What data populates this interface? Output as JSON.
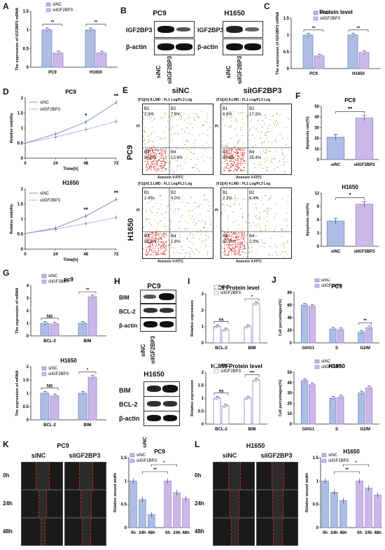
{
  "panels": {
    "A": {
      "label": "A"
    },
    "B": {
      "label": "B",
      "pc9": "PC9",
      "h1650": "H1650",
      "igf": "IGF2BP3",
      "actin": "β-actin",
      "sinc": "siNC",
      "si": "siIGF2BP3"
    },
    "C": {
      "label": "C",
      "title": "Protein level"
    },
    "D": {
      "label": "D",
      "title1": "PC9",
      "title2": "H1650"
    },
    "E": {
      "label": "E",
      "col1": "siNC",
      "col2": "siIGF2BP3",
      "row1": "PC9",
      "row2": "H1650",
      "headers": [
        "(F1)[A] 8.LMD : FL1 Log/FL3 Log",
        "(F1)[A] 8.LMD : FL1 Log/FL3 Log",
        "(F1)[A] 2.LMD : FL1 Log/FL3 Log",
        "(F1)[A] 4.LMD : FL1 Log/FL3 Log"
      ],
      "xaxis": "Annexin V-FITC",
      "yaxis": "PI",
      "quads": [
        {
          "B1": "B1",
          "B1v": "2.3%",
          "B2": "B2",
          "B2v": "7.8%",
          "B3": "B3",
          "B3v": "86.0%",
          "B4": "B4",
          "B4v": "13.9%"
        },
        {
          "B1": "B1",
          "B1v": "6.8%",
          "B2": "B2",
          "B2v": "17.2%",
          "B3": "B3",
          "B3v": "50.6%",
          "B4": "B4",
          "B4v": "25.4%"
        },
        {
          "B1": "B1",
          "B1v": "2.4%",
          "B2": "B2",
          "B2v": "4.0%",
          "B3": "B3",
          "B3v": "91.8%",
          "B4": "B4",
          "B4v": "1.8%"
        },
        {
          "B1": "B1",
          "B1v": "2.3%",
          "B2": "B2",
          "B2v": "8.4%",
          "B3": "B3",
          "B3v": "87.2%",
          "B4": "B4",
          "B4v": "2.0%"
        }
      ]
    },
    "F": {
      "label": "F",
      "title1": "PC9",
      "title2": "H1650"
    },
    "G": {
      "label": "G",
      "title1": "pc9",
      "title2": "H1650"
    },
    "H": {
      "label": "H",
      "title1": "PC9",
      "title2": "H1650",
      "bim": "BIM",
      "bcl": "BCL-2",
      "actin": "β-actin",
      "sinc": "siNC",
      "si": "siIGF2BP3"
    },
    "I": {
      "label": "I",
      "title1": "PC9 Protein level",
      "title2": "H1650 Protein level"
    },
    "J": {
      "label": "J",
      "title1": "PC9",
      "title2": "H1650"
    },
    "K": {
      "label": "K",
      "cell": "PC9",
      "sinc": "siNC",
      "si": "siIGF2BP3",
      "times": [
        "0h",
        "24h",
        "48h"
      ],
      "title": "PC9"
    },
    "L": {
      "label": "L",
      "cell": "H1650",
      "sinc": "siNC",
      "si": "siIGF2BP3",
      "times": [
        "0h",
        "24h",
        "48h"
      ],
      "title": "H1650"
    }
  },
  "legend": {
    "sinc": "siNC",
    "si": "siIGF2BP3"
  },
  "colors": {
    "sinc": "#aebde3",
    "si": "#cbb8e8",
    "sincLine": "#6f87c8",
    "siLine": "#9d7fd4",
    "sig": "#111"
  },
  "chart_data": [
    {
      "id": "A",
      "type": "bar",
      "ylabel": "The expression of IGF2BP3 mRNA",
      "categories": [
        "PC9",
        "H1650"
      ],
      "ylim": [
        0,
        1.5
      ],
      "yticks": [
        0,
        0.5,
        1.0,
        1.5
      ],
      "series": [
        {
          "name": "siNC",
          "values": [
            1.0,
            1.0
          ]
        },
        {
          "name": "siIGF2BP3",
          "values": [
            0.38,
            0.38
          ]
        }
      ],
      "sig": [
        "**",
        "**"
      ]
    },
    {
      "id": "C",
      "type": "bar",
      "title": "Protein level",
      "ylabel": "The expression of IGF2BP3 mRNA",
      "categories": [
        "PC9",
        "H1650"
      ],
      "ylim": [
        0,
        1.5
      ],
      "yticks": [
        0,
        0.5,
        1.0,
        1.5
      ],
      "series": [
        {
          "name": "siNC",
          "values": [
            1.0,
            1.0
          ]
        },
        {
          "name": "siIGF2BP3",
          "values": [
            0.38,
            0.48
          ]
        }
      ],
      "sig": [
        "**",
        "**"
      ]
    },
    {
      "id": "D1",
      "type": "line",
      "title": "PC9",
      "xlabel": "Time(h)",
      "ylabel": "Relative viability",
      "x": [
        0,
        24,
        48,
        72
      ],
      "ylim": [
        0,
        2.0
      ],
      "yticks": [
        0,
        0.5,
        1.0,
        1.5,
        2.0
      ],
      "series": [
        {
          "name": "siNC",
          "values": [
            0.5,
            0.8,
            1.2,
            1.85
          ]
        },
        {
          "name": "siIGF2BP3",
          "values": [
            0.5,
            0.7,
            0.95,
            1.22
          ]
        }
      ],
      "sig": [
        "",
        "",
        "*",
        "**"
      ]
    },
    {
      "id": "D2",
      "type": "line",
      "title": "H1650",
      "xlabel": "Time(h)",
      "ylabel": "Relative viability",
      "x": [
        0,
        24,
        48,
        72
      ],
      "ylim": [
        0,
        2.0
      ],
      "yticks": [
        0,
        0.5,
        1.0,
        1.5,
        2.0
      ],
      "series": [
        {
          "name": "siNC",
          "values": [
            0.52,
            0.7,
            1.1,
            1.65
          ]
        },
        {
          "name": "siIGF2BP3",
          "values": [
            0.52,
            0.66,
            0.85,
            1.05
          ]
        }
      ],
      "sig": [
        "",
        "",
        "**",
        "**"
      ]
    },
    {
      "id": "F1",
      "type": "bar",
      "title": "PC9",
      "ylabel": "Apoptosis rate(%)",
      "categories": [
        "siNC",
        "siIGF2BP3"
      ],
      "ylim": [
        0,
        50
      ],
      "yticks": [
        0,
        10,
        20,
        30,
        40,
        50
      ],
      "series": [
        {
          "name": "rate",
          "values": [
            21,
            39
          ]
        }
      ],
      "sig": "**"
    },
    {
      "id": "F2",
      "type": "bar",
      "title": "H1650",
      "ylabel": "Apoptosis rate(%)",
      "categories": [
        "siNC",
        "siIGF2BP3"
      ],
      "ylim": [
        0,
        12
      ],
      "yticks": [
        0,
        3,
        6,
        9,
        12
      ],
      "series": [
        {
          "name": "rate",
          "values": [
            5.7,
            9.5
          ]
        }
      ],
      "sig": "*"
    },
    {
      "id": "G1",
      "type": "bar",
      "title": "pc9",
      "ylabel": "The expression of mRNA",
      "categories": [
        "BCL-2",
        "BIM"
      ],
      "ylim": [
        0,
        4
      ],
      "yticks": [
        0,
        1,
        2,
        3,
        4
      ],
      "series": [
        {
          "name": "siNC",
          "values": [
            1.0,
            1.0
          ]
        },
        {
          "name": "siIGF2BP3",
          "values": [
            0.95,
            3.1
          ]
        }
      ],
      "sig": [
        "NS",
        "**"
      ]
    },
    {
      "id": "G2",
      "type": "bar",
      "title": "H1650",
      "ylabel": "The expression of mRNA",
      "categories": [
        "BCL-2",
        "BIM"
      ],
      "ylim": [
        0,
        2.0
      ],
      "yticks": [
        0,
        0.5,
        1.0,
        1.5,
        2.0
      ],
      "series": [
        {
          "name": "siNC",
          "values": [
            1.0,
            1.0
          ]
        },
        {
          "name": "siIGF2BP3",
          "values": [
            0.9,
            1.6
          ]
        }
      ],
      "sig": [
        "NS",
        "*"
      ]
    },
    {
      "id": "I1",
      "type": "bar",
      "title": "PC9 Protein level",
      "ylabel": "Relative expression",
      "categories": [
        "BCL-2",
        "BIM"
      ],
      "ylim": [
        0,
        3
      ],
      "yticks": [
        0,
        1,
        2,
        3
      ],
      "series": [
        {
          "name": "siNC",
          "values": [
            1.0,
            1.0
          ]
        },
        {
          "name": "siIGF2BP3",
          "values": [
            0.8,
            2.4
          ]
        }
      ],
      "sig": [
        "ns",
        "*"
      ]
    },
    {
      "id": "I2",
      "type": "bar",
      "title": "H1650 Protein level",
      "ylabel": "Relative expression",
      "categories": [
        "BCL-2",
        "BIM"
      ],
      "ylim": [
        0,
        2.0
      ],
      "yticks": [
        0,
        0.5,
        1.0,
        1.5,
        2.0
      ],
      "series": [
        {
          "name": "siNC",
          "values": [
            1.0,
            1.0
          ]
        },
        {
          "name": "siIGF2BP3",
          "values": [
            0.7,
            1.7
          ]
        }
      ],
      "sig": [
        "ns",
        "***"
      ]
    },
    {
      "id": "J1",
      "type": "bar",
      "title": "PC9",
      "ylabel": "Cell percentages(%)",
      "categories": [
        "G0/G1",
        "S",
        "G2/M"
      ],
      "ylim": [
        0,
        80
      ],
      "yticks": [
        0,
        20,
        40,
        60,
        80
      ],
      "series": [
        {
          "name": "siNC",
          "values": [
            60,
            22,
            17
          ]
        },
        {
          "name": "siIGF2BP3",
          "values": [
            58,
            21,
            24
          ]
        }
      ],
      "sig": [
        "",
        "",
        "**"
      ]
    },
    {
      "id": "J2",
      "type": "bar",
      "title": "H1650",
      "ylabel": "Cell percentages(%)",
      "categories": [
        "G0/G1",
        "S",
        "G2/M"
      ],
      "ylim": [
        0,
        50
      ],
      "yticks": [
        0,
        10,
        20,
        30,
        40,
        50
      ],
      "series": [
        {
          "name": "siNC",
          "values": [
            42,
            25,
            30
          ]
        },
        {
          "name": "siIGF2BP3",
          "values": [
            38,
            26,
            35
          ]
        }
      ],
      "sig": [
        "",
        "",
        ""
      ]
    },
    {
      "id": "K",
      "type": "bar",
      "title": "PC9",
      "ylabel": "Relative wound width",
      "categories": [
        "0h",
        "24h",
        "48h",
        "0h",
        "24h",
        "48h"
      ],
      "ylim": [
        0,
        1.5
      ],
      "yticks": [
        0,
        0.5,
        1.0,
        1.5
      ],
      "series": [
        {
          "name": "values",
          "values": [
            1.0,
            0.6,
            0.28,
            1.0,
            0.75,
            0.62
          ]
        }
      ],
      "groups": [
        "siNC",
        "siNC",
        "siNC",
        "siIGF2BP3",
        "siIGF2BP3",
        "siIGF2BP3"
      ],
      "sig": [
        "**",
        "*"
      ]
    },
    {
      "id": "L",
      "type": "bar",
      "title": "H1650",
      "ylabel": "Relative wound width",
      "categories": [
        "0h",
        "24h",
        "48h",
        "0h",
        "24h",
        "48h"
      ],
      "ylim": [
        0,
        1.5
      ],
      "yticks": [
        0,
        0.5,
        1.0,
        1.5
      ],
      "series": [
        {
          "name": "values",
          "values": [
            1.0,
            0.76,
            0.58,
            1.0,
            0.85,
            0.7
          ]
        }
      ],
      "groups": [
        "siNC",
        "siNC",
        "siNC",
        "siIGF2BP3",
        "siIGF2BP3",
        "siIGF2BP3"
      ],
      "sig": [
        "**",
        "*"
      ]
    }
  ]
}
